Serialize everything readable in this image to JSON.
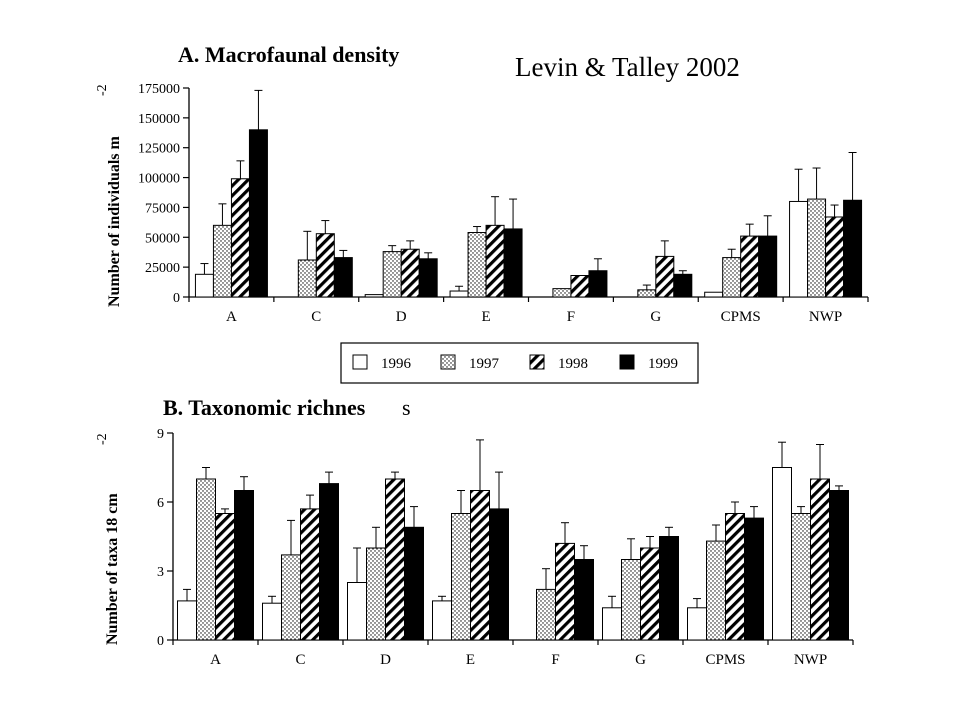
{
  "citation": "Levin & Talley 2002",
  "legend": [
    "1996",
    "1997",
    "1998",
    "1999"
  ],
  "chart_data": [
    {
      "type": "bar",
      "title": "A. Macrofaunal density",
      "ylabel": "Number of individuals m",
      "ylabel_superscript": "-2",
      "ylim": [
        0,
        175000
      ],
      "yticks": [
        "0",
        "25000",
        "50000",
        "75000",
        "100000",
        "125000",
        "150000",
        "175000"
      ],
      "categories": [
        "A",
        "C",
        "D",
        "E",
        "F",
        "G",
        "CPMS",
        "NWP"
      ],
      "series": [
        {
          "name": "1996",
          "values": [
            19000,
            0,
            2000,
            5000,
            0,
            0,
            4000,
            80000
          ],
          "errors": [
            9000,
            0,
            0,
            4000,
            0,
            0,
            0,
            27000
          ]
        },
        {
          "name": "1997",
          "values": [
            60000,
            31000,
            38000,
            54000,
            7000,
            6000,
            33000,
            82000
          ],
          "errors": [
            18000,
            24000,
            5000,
            5000,
            0,
            4000,
            7000,
            26000
          ]
        },
        {
          "name": "1998",
          "values": [
            99000,
            53000,
            40000,
            60000,
            18000,
            34000,
            51000,
            67000
          ],
          "errors": [
            15000,
            11000,
            7000,
            24000,
            0,
            13000,
            10000,
            10000
          ]
        },
        {
          "name": "1999",
          "values": [
            140000,
            33000,
            32000,
            57000,
            22000,
            19000,
            51000,
            81000
          ],
          "errors": [
            33000,
            6000,
            5000,
            25000,
            10000,
            3000,
            17000,
            40000
          ]
        }
      ]
    },
    {
      "type": "bar",
      "title": "B. Taxonomic richnes",
      "title_tail": "s",
      "ylabel": "Number of taxa 18 cm",
      "ylabel_superscript": "-2",
      "ylim": [
        0,
        9
      ],
      "yticks": [
        "0",
        "3",
        "6",
        "9"
      ],
      "categories": [
        "A",
        "C",
        "D",
        "E",
        "F",
        "G",
        "CPMS",
        "NWP"
      ],
      "series": [
        {
          "name": "1996",
          "values": [
            1.7,
            1.6,
            2.5,
            1.7,
            0,
            1.4,
            1.4,
            7.5
          ],
          "errors": [
            0.5,
            0.3,
            1.5,
            0.2,
            0,
            0.5,
            0.4,
            1.1
          ]
        },
        {
          "name": "1997",
          "values": [
            7.0,
            3.7,
            4.0,
            5.5,
            2.2,
            3.5,
            4.3,
            5.5
          ],
          "errors": [
            0.5,
            1.5,
            0.9,
            1.0,
            0.9,
            0.9,
            0.7,
            0.3
          ]
        },
        {
          "name": "1998",
          "values": [
            5.5,
            5.7,
            7.0,
            6.5,
            4.2,
            4.0,
            5.5,
            7.0
          ],
          "errors": [
            0.2,
            0.6,
            0.3,
            2.2,
            0.9,
            0.5,
            0.5,
            1.5
          ]
        },
        {
          "name": "1999",
          "values": [
            6.5,
            6.8,
            4.9,
            5.7,
            3.5,
            4.5,
            5.3,
            6.5
          ],
          "errors": [
            0.6,
            0.5,
            0.9,
            1.6,
            0.6,
            0.4,
            0.5,
            0.2
          ]
        }
      ]
    }
  ]
}
